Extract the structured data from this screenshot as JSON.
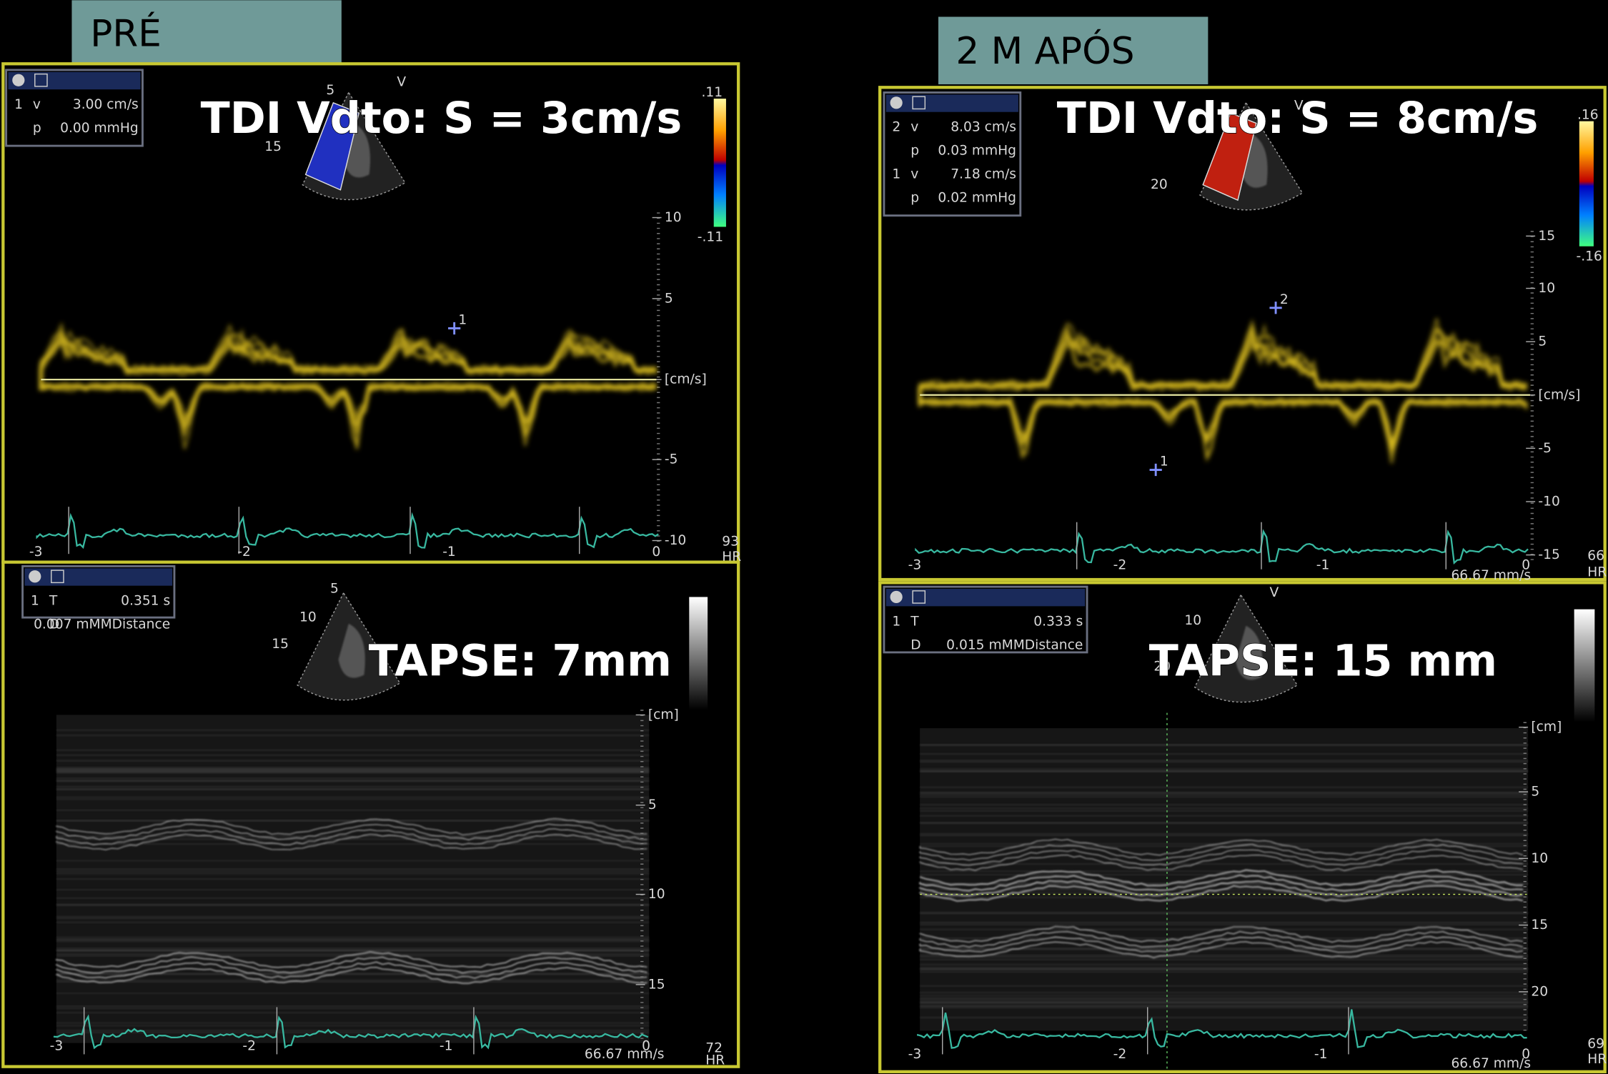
{
  "panels": [
    {
      "title": "PRÉ",
      "tdi": {
        "label": "TDI Vdto: S = 3cm/s",
        "measurements": [
          [
            "1",
            "v",
            "3.00 cm/s"
          ],
          [
            "",
            "p",
            "0.00 mmHg"
          ]
        ],
        "scale": [
          "10",
          "5",
          "[cm/s]",
          "-5",
          "-10"
        ],
        "color_scale": [
          ".11",
          "-.11"
        ],
        "hr": [
          "93",
          "HR"
        ],
        "time": [
          "-3",
          "-2",
          "-1",
          "0"
        ],
        "markers": [
          "1"
        ],
        "icon_marks": [
          "5",
          "15",
          "V"
        ]
      },
      "tapse": {
        "label": "TAPSE:  7mm",
        "measurements": [
          [
            "1",
            "T",
            "0.351 s"
          ],
          [
            "",
            "D",
            "0.007 mMMDistance"
          ]
        ],
        "scale": [
          "[cm]",
          "5",
          "10",
          "15"
        ],
        "hr": [
          "72",
          "HR"
        ],
        "time": [
          "-3",
          "-2",
          "-1",
          "0"
        ],
        "speed": "66.67 mm/s",
        "icon_marks": [
          "5",
          "10",
          "15"
        ]
      }
    },
    {
      "title": "2 M APÓS",
      "tdi": {
        "label": "TDI Vdto: S = 8cm/s",
        "measurements": [
          [
            "2",
            "v",
            "8.03 cm/s"
          ],
          [
            "",
            "p",
            "0.03 mmHg"
          ],
          [
            "1",
            "v",
            "7.18 cm/s"
          ],
          [
            "",
            "p",
            "0.02 mmHg"
          ]
        ],
        "scale": [
          "15",
          "10",
          "5",
          "[cm/s]",
          "-5",
          "-10",
          "-15"
        ],
        "color_scale": [
          ".16",
          "-.16"
        ],
        "hr": [
          "66",
          "HR"
        ],
        "time": [
          "-3",
          "-2",
          "-1",
          "0"
        ],
        "speed": "66.67 mm/s",
        "markers": [
          "2",
          "1"
        ],
        "icon_marks": [
          "V",
          "20"
        ]
      },
      "tapse": {
        "label": "TAPSE:  15 mm",
        "measurements": [
          [
            "1",
            "T",
            "0.333 s"
          ],
          [
            "",
            "D",
            "0.015 mMMDistance"
          ]
        ],
        "scale": [
          "[cm]",
          "5",
          "10",
          "15",
          "20"
        ],
        "hr": [
          "69",
          "HR"
        ],
        "time": [
          "-3",
          "-2",
          "-1",
          "0"
        ],
        "speed": "66.67 mm/s",
        "icon_marks": [
          "V",
          "10",
          "20"
        ]
      }
    }
  ]
}
